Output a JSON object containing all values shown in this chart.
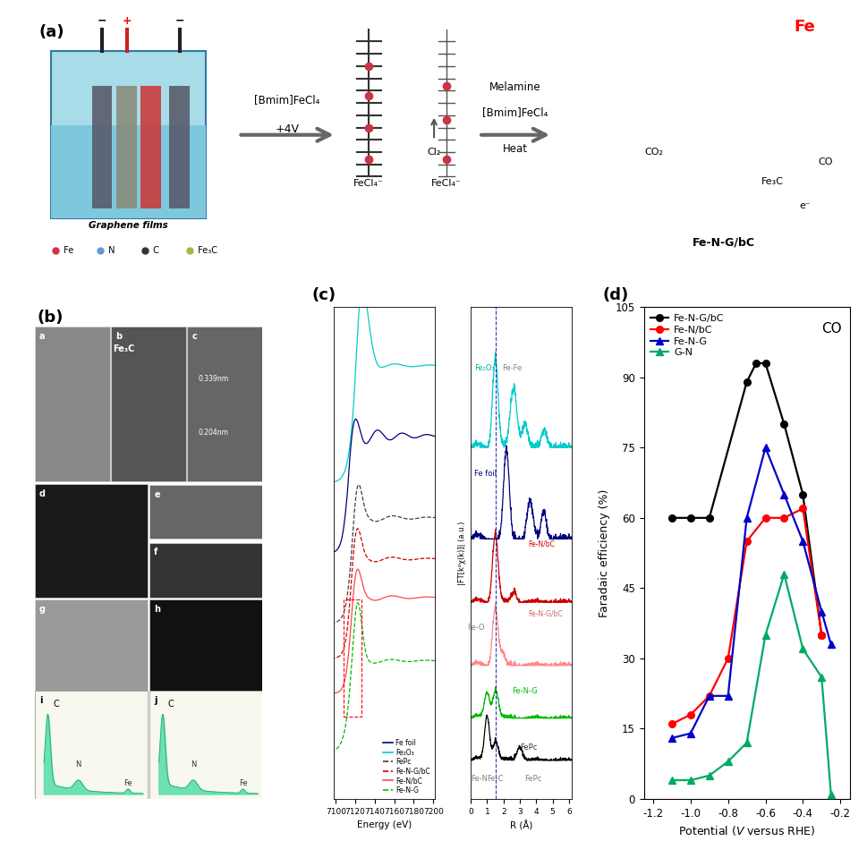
{
  "panel_d": {
    "title": "CO",
    "xlabel": "Potential ($V$ versus RHE)",
    "ylabel": "Faradaic efficiency (%)",
    "ylim": [
      0,
      105
    ],
    "xlim": [
      -0.15,
      -1.25
    ],
    "yticks": [
      0,
      15,
      30,
      45,
      60,
      75,
      90,
      105
    ],
    "xticks": [
      -0.2,
      -0.4,
      -0.6,
      -0.8,
      -1.0,
      -1.2
    ],
    "xtick_labels": [
      "-0.2",
      "-0.4",
      "-0.6",
      "-0.8",
      "-1.0",
      "-1.2"
    ],
    "series": {
      "Fe-N-G/bC": {
        "color": "#000000",
        "marker": "o",
        "x": [
          -0.3,
          -0.4,
          -0.5,
          -0.6,
          -0.65,
          -0.7,
          -0.9,
          -1.0,
          -1.1
        ],
        "y": [
          35,
          65,
          80,
          93,
          93,
          89,
          60,
          60,
          60
        ]
      },
      "Fe-N/bC": {
        "color": "#ff0000",
        "marker": "o",
        "x": [
          -0.3,
          -0.4,
          -0.5,
          -0.6,
          -0.7,
          -0.8,
          -0.9,
          -1.0,
          -1.1
        ],
        "y": [
          35,
          62,
          60,
          60,
          55,
          30,
          22,
          18,
          16
        ]
      },
      "Fe-N-G": {
        "color": "#0000cc",
        "marker": "^",
        "x": [
          -0.25,
          -0.3,
          -0.4,
          -0.5,
          -0.6,
          -0.7,
          -0.8,
          -0.9,
          -1.0,
          -1.1
        ],
        "y": [
          33,
          40,
          55,
          65,
          75,
          60,
          22,
          22,
          14,
          13
        ]
      },
      "G-N": {
        "color": "#00aa66",
        "marker": "^",
        "x": [
          -0.25,
          -0.3,
          -0.4,
          -0.5,
          -0.6,
          -0.7,
          -0.8,
          -0.9,
          -1.0,
          -1.1
        ],
        "y": [
          1,
          26,
          32,
          48,
          35,
          12,
          8,
          5,
          4,
          4
        ]
      }
    }
  },
  "background_color": "#ffffff",
  "panel_labels": {
    "a": "(a)",
    "b": "(b)",
    "c": "(c)",
    "d": "(d)"
  }
}
